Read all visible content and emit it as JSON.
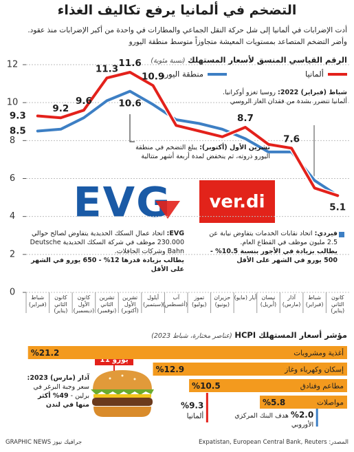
{
  "header": {
    "title": "التضخم في ألمانيا يرفع تكاليف الغذاء",
    "subtitle": [
      "أدت الإضرابات في ألمانيا إلى شل حركة النقل الجماعي والمطارات في واحدة من أكبر الإضرابات منذ عقود.",
      "وأضر التضخم المتصاعد بمستويات المعيشة متجاوزاً متوسط منطقة اليورو"
    ]
  },
  "chart_data": [
    {
      "type": "line",
      "title": "الرقم القياسي المنسق لأسعار المستهلك",
      "unit": "(نسبة مئوية)",
      "categories": [
        "كانون الثاني (يناير)",
        "شباط (فبراير)",
        "آذار (مارس)",
        "نيسان (أبريل)",
        "أيار (مايو)",
        "حزيران (يونيو)",
        "تموز (يوليو)",
        "آب (أغسطس)",
        "أيلول (سبتمبر)",
        "تشرين الأول (أكتوبر)",
        "تشرين الثاني (نوفمبر)",
        "كانون الأول (ديسمبر)",
        "كانون الثاني (يناير)",
        "شباط (فبراير)"
      ],
      "series": [
        {
          "name": "ألمانيا",
          "color": "#e3211b",
          "values": [
            5.1,
            5.5,
            7.6,
            7.8,
            8.7,
            8.2,
            8.5,
            8.8,
            10.9,
            11.6,
            11.3,
            9.6,
            9.2,
            9.3
          ],
          "value_labels": [
            "5.1",
            null,
            "7.6",
            null,
            "8.7",
            null,
            null,
            null,
            "10.9",
            "11.6",
            "11.3",
            "9.6",
            "9.2",
            "9.3"
          ]
        },
        {
          "name": "منطقة اليورو",
          "color": "#3d7fc4",
          "values": [
            5.1,
            5.9,
            7.4,
            7.4,
            8.1,
            8.6,
            8.9,
            9.1,
            9.9,
            10.6,
            10.1,
            9.2,
            8.6,
            8.5
          ],
          "value_labels": [
            null,
            null,
            null,
            null,
            null,
            null,
            null,
            null,
            null,
            "10.6",
            null,
            null,
            null,
            "8.5"
          ]
        }
      ],
      "ylim": [
        0,
        12
      ],
      "yticks": [
        0,
        2,
        4,
        6,
        8,
        10,
        12
      ],
      "grid": true,
      "annotations": [
        {
          "date": "شباط (فبراير) 2022:",
          "text": " روسيا تغزو أوكرانيا. ألمانيا تتضرر بشدة من فقدان الغاز الروسي"
        },
        {
          "date": "تشرين الأول (أكتوبر):",
          "text": " يبلغ التضخم في منطقة اليورو ذروته، ثم ينخفض لمدة أربعة أشهر متتالية"
        }
      ]
    },
    {
      "type": "bar",
      "orientation": "horizontal",
      "title": "مؤشر أسعار المستهلك HCPI",
      "subtitle": "(عناصر مختارة، شباط 2023)",
      "categories": [
        "أغذية ومشروبات",
        "إسكان وكهرباء وغاز",
        "مطاعم وفنادق",
        "مواصلات"
      ],
      "values": [
        21.2,
        12.9,
        10.5,
        5.8
      ],
      "value_labels": [
        "%21.2",
        "%12.9",
        "%10.5",
        "%5.8"
      ],
      "color": "#f39a1e",
      "reference_lines": [
        {
          "name": "ألمانيا",
          "value": 9.3,
          "label": "%9.3",
          "color": "#e3211b"
        },
        {
          "name": "هدف البنك المركزي الأوروبي",
          "value": 2.0,
          "label": "%2.0",
          "color": "#3d7fc4"
        }
      ]
    }
  ],
  "unions": [
    {
      "logo": "EVG",
      "name": "EVG:",
      "text": " اتحاد عمال السكك الحديدية يتفاوض لصالح حوالي 230.000 موظف في شركة السكك الحديدية Deutsche Bahn وشركات الحافلات.",
      "demand": "يطالب بزيادة قدرها 12% - 650 يورو في الشهر على الأقل"
    },
    {
      "logo": "ver.di",
      "name": "فيردي:",
      "text": " اتحاد نقابات الخدمات يتفاوض نيابة عن 2.5 مليون موظف في القطاع العام.",
      "demand": "يطالب بزيادة في الأجور بنسبة 10.5% - 500 يورو في الشهر على الأقل"
    }
  ],
  "burger": {
    "price_tag": "11 يورو",
    "date": "آذار (مارس) 2023:",
    "text": " سعر وجبة البرغر في برلين - ",
    "highlight": "49% أكثر منها في لندن"
  },
  "footer": {
    "source": "المصدر: Expatistan, European Central Bank, Reuters",
    "credit": "جرافيك نيوز GRAPHIC NEWS"
  }
}
